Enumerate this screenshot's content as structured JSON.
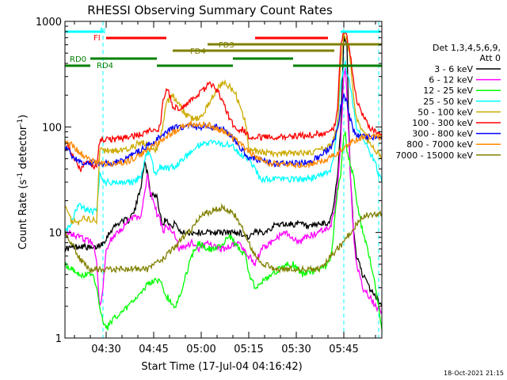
{
  "chart_data": {
    "type": "line",
    "title": "RHESSI Observing Summary Count Rates",
    "xlabel": "Start Time (17-Jul-04 04:16:42)",
    "ylabel_main": "Count Rate (s",
    "ylabel_sup": "-1",
    "ylabel_mid": " detector",
    "ylabel_end": ")",
    "yscale": "log",
    "ylim": [
      1,
      1000
    ],
    "xlim_minutes": [
      0,
      100
    ],
    "x_ticks": [
      {
        "min": 13,
        "label": "04:30"
      },
      {
        "min": 28,
        "label": "04:45"
      },
      {
        "min": 43,
        "label": "05:00"
      },
      {
        "min": 58,
        "label": "05:15"
      },
      {
        "min": 73,
        "label": "05:30"
      },
      {
        "min": 88,
        "label": "05:45"
      }
    ],
    "y_ticks": [
      {
        "val": 1,
        "label": "1"
      },
      {
        "val": 10,
        "label": "10"
      },
      {
        "val": 100,
        "label": "100"
      },
      {
        "val": 1000,
        "label": "1000"
      }
    ],
    "legend_header": [
      "Det 1,3,4,5,6,9,",
      "Att 0"
    ],
    "legend_placement": "right",
    "series": [
      {
        "name": "3 - 6 keV",
        "color": "#000000",
        "x": [
          0,
          5,
          9,
          12,
          15,
          18,
          20,
          22,
          24,
          25,
          26,
          27,
          28,
          29,
          30,
          31,
          32,
          33,
          34,
          35,
          36,
          38,
          40,
          45,
          50,
          55,
          58,
          60,
          62,
          65,
          67,
          70,
          72,
          75,
          77,
          80,
          83,
          84,
          85,
          86,
          87,
          88,
          89,
          89.5,
          90,
          91,
          92,
          94,
          96,
          98,
          100
        ],
        "y": [
          7,
          7.5,
          7,
          8,
          11,
          13,
          13,
          16,
          28,
          45,
          38,
          23,
          23,
          22,
          15,
          12,
          14,
          12,
          11,
          13,
          10,
          10,
          10,
          10,
          10,
          10,
          9,
          10,
          10,
          11,
          12,
          12,
          12,
          12,
          11,
          12,
          12,
          14,
          20,
          35,
          90,
          700,
          600,
          120,
          40,
          11,
          6,
          4,
          3,
          2.5,
          2
        ]
      },
      {
        "name": "6 - 12 keV",
        "color": "#ff00ff",
        "x": [
          0,
          5,
          9,
          10,
          11,
          12,
          13,
          15,
          18,
          20,
          22,
          24,
          25,
          26,
          27,
          28,
          29,
          30,
          31,
          32,
          33,
          35,
          36,
          40,
          42,
          45,
          48,
          50,
          55,
          58,
          60,
          62,
          65,
          67,
          70,
          72,
          74,
          76,
          80,
          83,
          84,
          85,
          86,
          87,
          88,
          88.5,
          89,
          90,
          91,
          92,
          94,
          96,
          98,
          100
        ],
        "y": [
          10,
          9,
          8,
          5,
          2,
          3,
          7,
          9,
          11,
          13,
          14,
          14,
          22,
          35,
          24,
          20,
          15,
          13,
          10,
          12,
          11,
          9,
          7,
          8,
          7,
          8,
          7,
          7,
          8,
          6,
          5,
          7,
          8,
          9,
          10,
          9,
          8,
          9,
          10,
          11,
          12,
          16,
          28,
          70,
          300,
          380,
          200,
          40,
          10,
          5,
          3,
          2.5,
          2,
          1.8
        ]
      },
      {
        "name": "12 - 25 keV",
        "color": "#00ff00",
        "x": [
          0,
          5,
          9,
          10,
          11,
          12,
          13,
          15,
          20,
          25,
          28,
          30,
          32,
          35,
          37,
          40,
          42,
          45,
          48,
          50,
          52,
          55,
          57,
          58,
          60,
          65,
          70,
          72,
          75,
          80,
          83,
          84,
          85,
          86,
          87,
          88,
          88.5,
          89,
          90,
          91,
          92,
          94,
          96,
          98,
          99,
          100
        ],
        "y": [
          5,
          4,
          4,
          3,
          2,
          1.5,
          1.2,
          1.5,
          2,
          3,
          3.5,
          3.5,
          2.5,
          2,
          3,
          6,
          8,
          7,
          7,
          8,
          9,
          7,
          6,
          4,
          3,
          4,
          5,
          5,
          4,
          4.5,
          5,
          6,
          12,
          25,
          35,
          80,
          90,
          60,
          45,
          35,
          20,
          10,
          6,
          3,
          2,
          1.2
        ]
      },
      {
        "name": "25 - 50 keV",
        "color": "#00ffff",
        "x": [
          0,
          2,
          4,
          6,
          8,
          10,
          11,
          12,
          14,
          18,
          22,
          24,
          26,
          27,
          28,
          29,
          30,
          32,
          35,
          38,
          40,
          42,
          44,
          46,
          48,
          50,
          52,
          54,
          56,
          57,
          58,
          60,
          62,
          65,
          70,
          75,
          78,
          80,
          82,
          84,
          85,
          86,
          87,
          88,
          88.5,
          89,
          90,
          91,
          92,
          94,
          96,
          98,
          99,
          100
        ],
        "y": [
          10,
          12,
          18,
          17,
          16,
          16,
          35,
          30,
          30,
          30,
          30,
          35,
          58,
          55,
          40,
          35,
          42,
          40,
          43,
          52,
          58,
          66,
          70,
          73,
          70,
          68,
          68,
          60,
          55,
          52,
          50,
          40,
          32,
          32,
          32,
          32,
          33,
          34,
          36,
          40,
          55,
          110,
          250,
          380,
          400,
          330,
          250,
          160,
          100,
          80,
          60,
          45,
          35,
          30
        ]
      },
      {
        "name": "50 - 100 keV",
        "color": "#ccaa00",
        "x": [
          0,
          1,
          2,
          4,
          6,
          8,
          10,
          11,
          12,
          14,
          16,
          18,
          20,
          22,
          23,
          24,
          25,
          26,
          27,
          28,
          29,
          30,
          31,
          32,
          34,
          36,
          38,
          40,
          42,
          44,
          46,
          48,
          50,
          52,
          54,
          56,
          57,
          58,
          60,
          62,
          64,
          66,
          68,
          70,
          72,
          74,
          76,
          78,
          80,
          82,
          84,
          86,
          87,
          88,
          89,
          90,
          91,
          92,
          94,
          96,
          98,
          99,
          100
        ],
        "y": [
          18,
          16,
          13,
          12,
          14,
          13,
          13,
          60,
          60,
          60,
          60,
          61,
          62,
          65,
          70,
          70,
          70,
          68,
          62,
          60,
          62,
          75,
          110,
          170,
          200,
          165,
          130,
          120,
          120,
          140,
          180,
          230,
          260,
          240,
          200,
          130,
          110,
          60,
          60,
          58,
          57,
          56,
          56,
          56,
          56,
          56,
          57,
          58,
          60,
          62,
          66,
          100,
          400,
          750,
          680,
          450,
          200,
          120,
          90,
          70,
          60,
          55,
          50
        ]
      },
      {
        "name": "100 - 300 keV",
        "color": "#ff0000",
        "x": [
          0,
          1,
          2,
          3,
          4,
          5,
          6,
          7,
          8,
          9,
          10,
          11,
          12,
          14,
          16,
          18,
          20,
          22,
          24,
          26,
          27,
          28,
          29,
          30,
          31,
          32,
          33,
          34,
          36,
          38,
          40,
          42,
          44,
          46,
          48,
          50,
          52,
          54,
          56,
          57,
          58,
          60,
          62,
          64,
          66,
          68,
          70,
          72,
          74,
          76,
          78,
          80,
          82,
          84,
          85,
          86,
          87,
          88,
          89,
          90,
          91,
          92,
          94,
          96,
          98,
          99,
          100
        ],
        "y": [
          60,
          70,
          55,
          50,
          45,
          40,
          46,
          45,
          44,
          42,
          40,
          75,
          76,
          76,
          77,
          78,
          80,
          82,
          85,
          90,
          95,
          92,
          90,
          100,
          180,
          230,
          200,
          160,
          150,
          160,
          180,
          200,
          230,
          260,
          220,
          170,
          120,
          95,
          95,
          88,
          80,
          80,
          80,
          80,
          80,
          80,
          80,
          81,
          82,
          83,
          84,
          86,
          88,
          90,
          100,
          150,
          600,
          800,
          700,
          500,
          300,
          180,
          130,
          100,
          90,
          85,
          80
        ]
      },
      {
        "name": "300 - 800 keV",
        "color": "#0000ff",
        "x": [
          0,
          1,
          2,
          3,
          4,
          5,
          6,
          8,
          10,
          12,
          14,
          16,
          18,
          20,
          22,
          24,
          26,
          28,
          30,
          32,
          34,
          36,
          38,
          40,
          42,
          44,
          46,
          48,
          50,
          52,
          54,
          56,
          58,
          60,
          62,
          64,
          66,
          68,
          70,
          72,
          74,
          76,
          78,
          80,
          82,
          84,
          85,
          86,
          87,
          88,
          89,
          90,
          91,
          92,
          94,
          96,
          98,
          99,
          100
        ],
        "y": [
          65,
          60,
          55,
          50,
          48,
          46,
          45,
          46,
          45,
          45,
          45,
          46,
          48,
          52,
          56,
          60,
          66,
          72,
          80,
          88,
          96,
          100,
          102,
          100,
          100,
          100,
          99,
          100,
          95,
          85,
          72,
          60,
          52,
          50,
          48,
          46,
          45,
          45,
          45,
          45,
          45,
          46,
          48,
          52,
          58,
          65,
          75,
          95,
          150,
          200,
          170,
          120,
          95,
          85,
          80,
          80,
          80,
          80,
          80
        ]
      },
      {
        "name": "800 - 7000 keV",
        "color": "#ff8800",
        "x": [
          0,
          2,
          4,
          6,
          8,
          10,
          12,
          14,
          16,
          18,
          20,
          22,
          24,
          26,
          28,
          30,
          32,
          34,
          36,
          38,
          40,
          42,
          44,
          46,
          48,
          50,
          52,
          54,
          56,
          58,
          60,
          62,
          64,
          66,
          68,
          70,
          72,
          74,
          76,
          78,
          80,
          82,
          84,
          86,
          88,
          90,
          92,
          94,
          96,
          98,
          100
        ],
        "y": [
          75,
          68,
          60,
          53,
          48,
          46,
          45,
          45,
          45,
          46,
          48,
          51,
          55,
          60,
          66,
          72,
          80,
          88,
          96,
          103,
          107,
          108,
          106,
          102,
          96,
          90,
          82,
          74,
          66,
          58,
          52,
          48,
          46,
          45,
          44,
          44,
          44,
          44,
          44,
          45,
          46,
          48,
          52,
          56,
          64,
          70,
          76,
          80,
          82,
          82,
          80
        ]
      },
      {
        "name": "7000 - 15000 keV",
        "color": "#808000",
        "x": [
          0,
          2,
          4,
          6,
          8,
          10,
          12,
          14,
          16,
          18,
          20,
          22,
          24,
          26,
          28,
          30,
          32,
          34,
          36,
          38,
          40,
          42,
          44,
          46,
          48,
          50,
          52,
          54,
          56,
          58,
          60,
          62,
          64,
          66,
          68,
          70,
          72,
          74,
          76,
          78,
          80,
          82,
          84,
          86,
          88,
          90,
          92,
          94,
          96,
          98,
          100
        ],
        "y": [
          10,
          8,
          6,
          5,
          4.5,
          4.5,
          4.5,
          4.5,
          4.5,
          4.5,
          4.5,
          4.5,
          4.5,
          4.5,
          5,
          5.5,
          6,
          7,
          8,
          9.5,
          11,
          13,
          15,
          16,
          17,
          17,
          16,
          14,
          11,
          8,
          6,
          5,
          5,
          4.5,
          4.5,
          4.5,
          4.5,
          4.5,
          4.5,
          4.5,
          4.5,
          5,
          6,
          7,
          8,
          10,
          12,
          14,
          15,
          15,
          15
        ]
      }
    ],
    "vlines_minutes": [
      12,
      88,
      99
    ],
    "state_bars": [
      {
        "label": "N",
        "color": "#00ffff",
        "row": 0,
        "segments": [
          [
            0,
            12
          ],
          [
            87,
            99.5
          ]
        ]
      },
      {
        "label": "FI",
        "color": "#ff0000",
        "row": 1,
        "segments": [
          [
            13,
            32
          ],
          [
            60,
            83
          ]
        ]
      },
      {
        "label": "FD3",
        "color": "#808000",
        "row": 2,
        "segments": [
          [
            45,
            100
          ]
        ]
      },
      {
        "label": "FD4",
        "color": "#808000",
        "row": 3,
        "segments": [
          [
            34,
            85
          ]
        ]
      },
      {
        "label": "RD0",
        "color": "#008000",
        "row": 4,
        "segments": [
          [
            8,
            29
          ],
          [
            53,
            72
          ]
        ]
      },
      {
        "label": "RD4",
        "color": "#008000",
        "row": 5,
        "segments": [
          [
            0,
            8
          ],
          [
            29,
            53
          ],
          [
            72,
            100
          ]
        ]
      }
    ]
  },
  "footer": {
    "timestamp": "18-Oct-2021 21:15"
  }
}
